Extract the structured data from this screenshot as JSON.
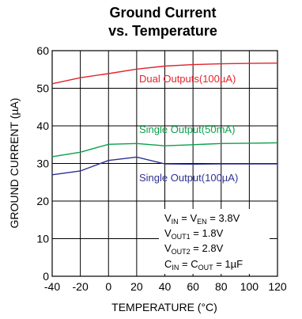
{
  "chart_data": {
    "type": "line",
    "title_line1": "Ground Current",
    "title_line2": "vs. Temperature",
    "xlabel": "TEMPERATURE (°C)",
    "ylabel": "GROUND CURRENT (µA)",
    "xlim": [
      -40,
      120
    ],
    "ylim": [
      0,
      60
    ],
    "x_ticks": [
      -40,
      -20,
      0,
      20,
      40,
      60,
      80,
      100,
      120
    ],
    "y_ticks": [
      0,
      10,
      20,
      30,
      40,
      50,
      60
    ],
    "grid": true,
    "series": [
      {
        "name": "Dual Outputs(100µA)",
        "color": "#e0252b",
        "x": [
          -40,
          -20,
          0,
          20,
          40,
          60,
          80,
          100,
          120
        ],
        "values": [
          51.2,
          52.8,
          53.9,
          55.1,
          55.9,
          56.3,
          56.5,
          56.6,
          56.7
        ]
      },
      {
        "name": "Single Output(50mA)",
        "color": "#0aa04a",
        "x": [
          -40,
          -20,
          0,
          20,
          40,
          60,
          80,
          100,
          120
        ],
        "values": [
          31.8,
          33.0,
          35.1,
          35.3,
          34.7,
          35.0,
          35.3,
          35.4,
          35.5
        ]
      },
      {
        "name": "Single Output(100µA)",
        "color": "#2e3192",
        "x": [
          -40,
          -20,
          0,
          20,
          40,
          60,
          80,
          100,
          120
        ],
        "values": [
          27.0,
          28.0,
          30.8,
          31.7,
          29.9,
          29.8,
          29.9,
          29.9,
          29.9
        ]
      }
    ],
    "annotation_lines": [
      "VIN = VEN = 3.8V",
      "VOUT1 = 1.8V",
      "VOUT2 = 2.8V",
      "CIN = COUT = 1µF"
    ],
    "colors": {
      "axis": "#000000",
      "grid": "#000000",
      "background": "#ffffff"
    }
  }
}
